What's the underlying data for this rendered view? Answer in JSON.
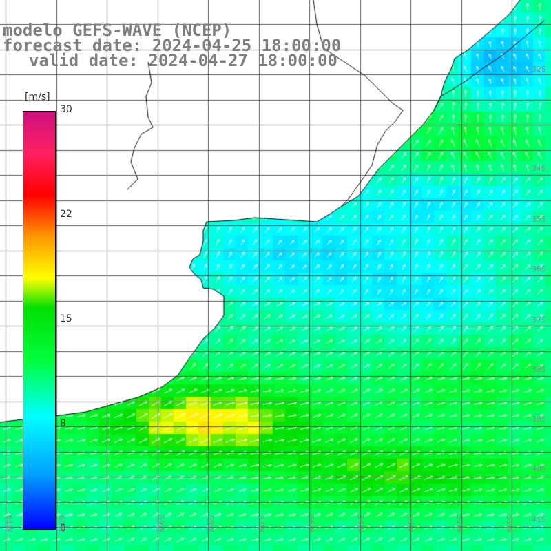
{
  "header": {
    "model": "modelo GEFS-WAVE (NCEP)",
    "forecast": "forecast date: 2024-04-25 18:00:00",
    "valid": "valid date: 2024-04-27 18:00:00"
  },
  "colorbar": {
    "unit": "[m/s]",
    "ticks": [
      "30",
      "22",
      "15",
      "8",
      "0"
    ],
    "range": [
      0,
      30
    ],
    "colors": [
      "#0000ff",
      "#00a0ff",
      "#00ffff",
      "#00ff40",
      "#00e000",
      "#ffff00",
      "#ff9900",
      "#ff0000",
      "#ff2060",
      "#cc1080"
    ]
  },
  "lat_labels": [
    "32S",
    "34S",
    "35S",
    "36S",
    "37S",
    "38S",
    "39S",
    "40S",
    "41S"
  ],
  "lon_labels": [
    "61W",
    "60W",
    "59W",
    "58W",
    "57W",
    "56W",
    "54W",
    "53W",
    "52W",
    "51W"
  ],
  "land_color": "#ffffff",
  "grid_color": "#555555",
  "vector_color": "#ffffff"
}
